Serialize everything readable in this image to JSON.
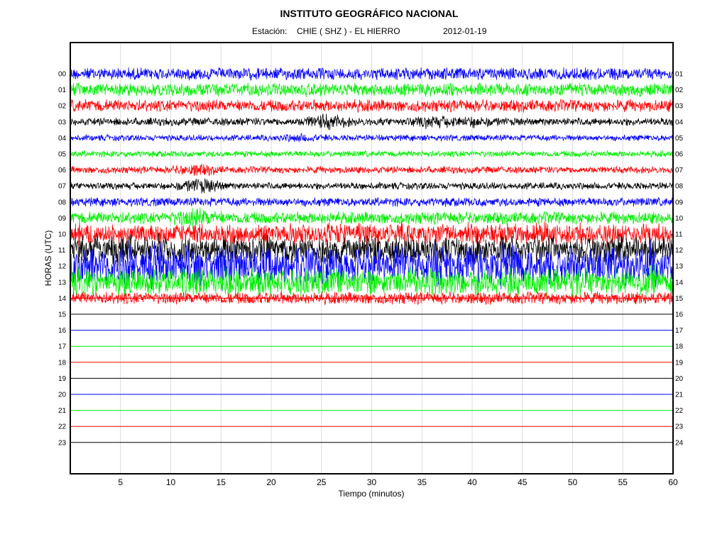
{
  "chart_data": {
    "type": "line",
    "title": "INSTITUTO GEOGRÁFICO NACIONAL",
    "subtitle": {
      "station_label": "Estación:",
      "station": "CHIE ( SHZ ) - EL HIERRO",
      "date": "2012-01-19"
    },
    "xlabel": "Tiempo (minutos)",
    "ylabel": "HORAS (UTC)",
    "xlim": [
      0,
      60
    ],
    "x_ticks": [
      5,
      10,
      15,
      20,
      25,
      30,
      35,
      40,
      45,
      50,
      55,
      60
    ],
    "grid": true,
    "left_ticks": [
      "00",
      "01",
      "02",
      "03",
      "04",
      "05",
      "06",
      "07",
      "08",
      "09",
      "10",
      "11",
      "12",
      "13",
      "14",
      "15",
      "16",
      "17",
      "18",
      "19",
      "20",
      "21",
      "22",
      "23"
    ],
    "right_ticks": [
      "01",
      "02",
      "03",
      "04",
      "05",
      "06",
      "07",
      "08",
      "09",
      "10",
      "11",
      "12",
      "13",
      "14",
      "15",
      "16",
      "17",
      "18",
      "19",
      "20",
      "21",
      "22",
      "23",
      "24"
    ],
    "trace_colors": [
      "#0000ff",
      "#00ee00",
      "#ff0000",
      "#000000"
    ],
    "last_recorded_hour": 14,
    "last_recorded_minute": 60,
    "traces": [
      {
        "hour": 0,
        "noise": 1.4
      },
      {
        "hour": 1,
        "noise": 1.5
      },
      {
        "hour": 2,
        "noise": 1.4
      },
      {
        "hour": 3,
        "noise": 0.9,
        "events": [
          [
            25.5,
            2.2
          ],
          [
            36,
            1.8
          ],
          [
            40,
            1.6
          ]
        ]
      },
      {
        "hour": 4,
        "noise": 0.7,
        "events": [
          [
            23,
            1.6
          ]
        ]
      },
      {
        "hour": 5,
        "noise": 0.7
      },
      {
        "hour": 6,
        "noise": 0.8,
        "events": [
          [
            12.5,
            2.0
          ]
        ]
      },
      {
        "hour": 7,
        "noise": 0.8,
        "events": [
          [
            13,
            2.4
          ]
        ]
      },
      {
        "hour": 8,
        "noise": 1.0
      },
      {
        "hour": 9,
        "noise": 1.4,
        "events": [
          [
            12.5,
            1.8
          ]
        ]
      },
      {
        "hour": 10,
        "noise": 2.0
      },
      {
        "hour": 11,
        "noise": 2.6
      },
      {
        "hour": 12,
        "noise": 3.6
      },
      {
        "hour": 13,
        "noise": 2.6
      },
      {
        "hour": 14,
        "noise": 1.4
      }
    ]
  }
}
